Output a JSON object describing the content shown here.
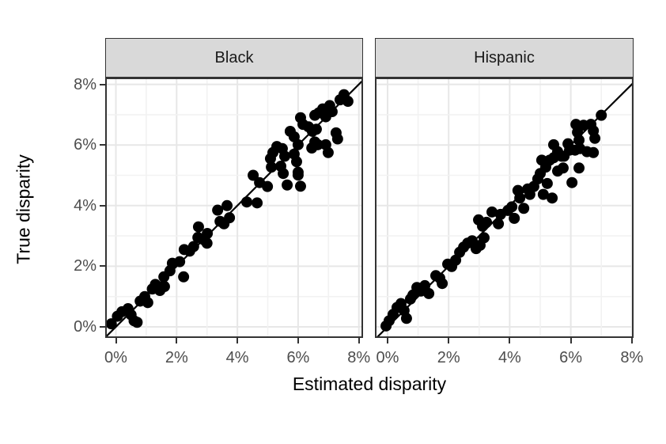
{
  "figure": {
    "x_axis_title": "Estimated disparity",
    "y_axis_title": "True disparity",
    "x_tick_labels": [
      "0%",
      "2%",
      "4%",
      "6%",
      "8%"
    ],
    "y_tick_labels": [
      "0%",
      "2%",
      "4%",
      "6%",
      "8%"
    ]
  },
  "colors": {
    "point": "#000000",
    "reference_line": "#000000",
    "strip_fill": "#d9d9d9",
    "panel_border": "#333333",
    "grid_major": "#e7e7e7",
    "grid_minor": "#f2f2f2",
    "tick_label": "#4d4d4d"
  },
  "chart_data": {
    "type": "scatter",
    "title": "",
    "xlabel": "Estimated disparity",
    "ylabel": "True disparity",
    "xlim": [
      -0.35,
      8.15
    ],
    "ylim": [
      -0.4,
      8.25
    ],
    "x_ticks_pct": [
      0,
      2,
      4,
      6,
      8
    ],
    "y_ticks_pct": [
      0,
      2,
      4,
      6,
      8
    ],
    "tick_format": "percent",
    "grid": "on",
    "reference_line": "y = x",
    "legend": "none",
    "facets": [
      {
        "label": "Black",
        "points": [
          [
            -0.15,
            0.1
          ],
          [
            0.05,
            0.35
          ],
          [
            0.2,
            0.5
          ],
          [
            0.4,
            0.6
          ],
          [
            0.5,
            0.4
          ],
          [
            0.6,
            0.2
          ],
          [
            0.7,
            0.15
          ],
          [
            0.8,
            0.85
          ],
          [
            0.95,
            1.0
          ],
          [
            1.05,
            0.8
          ],
          [
            1.2,
            1.25
          ],
          [
            1.3,
            1.4
          ],
          [
            1.45,
            1.2
          ],
          [
            1.58,
            1.65
          ],
          [
            1.6,
            1.33
          ],
          [
            1.78,
            1.85
          ],
          [
            1.86,
            2.1
          ],
          [
            2.1,
            2.15
          ],
          [
            2.23,
            1.65
          ],
          [
            2.25,
            2.55
          ],
          [
            2.43,
            2.5
          ],
          [
            2.56,
            2.65
          ],
          [
            2.7,
            2.95
          ],
          [
            2.9,
            2.87
          ],
          [
            3.01,
            3.08
          ],
          [
            2.72,
            3.3
          ],
          [
            3.0,
            2.76
          ],
          [
            3.35,
            3.85
          ],
          [
            3.43,
            3.48
          ],
          [
            3.56,
            3.4
          ],
          [
            3.66,
            4.0
          ],
          [
            3.74,
            3.6
          ],
          [
            4.31,
            4.12
          ],
          [
            4.52,
            5.0
          ],
          [
            4.65,
            4.09
          ],
          [
            4.73,
            4.76
          ],
          [
            4.99,
            4.63
          ],
          [
            5.09,
            5.55
          ],
          [
            5.17,
            5.75
          ],
          [
            5.3,
            5.95
          ],
          [
            5.43,
            5.3
          ],
          [
            5.56,
            5.63
          ],
          [
            5.64,
            4.68
          ],
          [
            5.87,
            5.7
          ],
          [
            6.0,
            5.1
          ],
          [
            6.08,
            4.64
          ],
          [
            5.12,
            5.27
          ],
          [
            5.48,
            5.88
          ],
          [
            5.95,
            5.45
          ],
          [
            5.74,
            6.45
          ],
          [
            5.87,
            6.27
          ],
          [
            6.0,
            6.01
          ],
          [
            6.08,
            6.9
          ],
          [
            6.16,
            6.68
          ],
          [
            6.34,
            6.6
          ],
          [
            6.47,
            6.45
          ],
          [
            6.55,
            6.98
          ],
          [
            6.68,
            7.06
          ],
          [
            6.81,
            7.19
          ],
          [
            6.91,
            6.93
          ],
          [
            7.04,
            7.3
          ],
          [
            7.12,
            7.1
          ],
          [
            7.25,
            6.4
          ],
          [
            7.3,
            6.2
          ],
          [
            7.38,
            7.49
          ],
          [
            7.51,
            7.66
          ],
          [
            7.64,
            7.44
          ],
          [
            6.99,
            5.75
          ],
          [
            6.91,
            6.01
          ],
          [
            6.65,
            6.01
          ],
          [
            6.55,
            6.1
          ],
          [
            6.45,
            5.9
          ],
          [
            6.6,
            6.52
          ],
          [
            6.0,
            5.01
          ],
          [
            5.51,
            5.06
          ]
        ]
      },
      {
        "label": "Hispanic",
        "points": [
          [
            -0.05,
            0.03
          ],
          [
            0.05,
            0.2
          ],
          [
            0.18,
            0.41
          ],
          [
            0.31,
            0.64
          ],
          [
            0.44,
            0.77
          ],
          [
            0.54,
            0.54
          ],
          [
            0.62,
            0.28
          ],
          [
            0.75,
            0.92
          ],
          [
            0.83,
            1.05
          ],
          [
            0.96,
            1.3
          ],
          [
            1.09,
            1.18
          ],
          [
            1.22,
            1.36
          ],
          [
            1.35,
            1.1
          ],
          [
            1.58,
            1.69
          ],
          [
            1.71,
            1.61
          ],
          [
            1.79,
            1.43
          ],
          [
            1.97,
            2.07
          ],
          [
            2.1,
            1.99
          ],
          [
            2.23,
            2.2
          ],
          [
            2.36,
            2.46
          ],
          [
            2.49,
            2.63
          ],
          [
            2.62,
            2.76
          ],
          [
            2.77,
            2.84
          ],
          [
            2.9,
            2.58
          ],
          [
            3.03,
            2.69
          ],
          [
            3.16,
            2.94
          ],
          [
            2.98,
            3.53
          ],
          [
            3.11,
            3.32
          ],
          [
            3.24,
            3.45
          ],
          [
            3.42,
            3.79
          ],
          [
            3.63,
            3.4
          ],
          [
            3.7,
            3.71
          ],
          [
            3.94,
            3.84
          ],
          [
            4.07,
            3.96
          ],
          [
            4.15,
            3.58
          ],
          [
            4.27,
            4.5
          ],
          [
            4.33,
            4.25
          ],
          [
            4.46,
            3.91
          ],
          [
            4.59,
            4.55
          ],
          [
            4.66,
            4.37
          ],
          [
            4.79,
            4.63
          ],
          [
            4.92,
            4.88
          ],
          [
            5.0,
            5.06
          ],
          [
            5.1,
            4.37
          ],
          [
            5.23,
            4.73
          ],
          [
            5.39,
            4.25
          ],
          [
            5.31,
            5.5
          ],
          [
            5.44,
            5.58
          ],
          [
            5.57,
            5.14
          ],
          [
            5.75,
            5.24
          ],
          [
            5.78,
            5.63
          ],
          [
            5.96,
            5.83
          ],
          [
            6.04,
            4.76
          ],
          [
            6.27,
            5.24
          ],
          [
            6.14,
            5.83
          ],
          [
            5.05,
            5.5
          ],
          [
            5.18,
            5.27
          ],
          [
            5.44,
            6.01
          ],
          [
            5.57,
            5.78
          ],
          [
            5.7,
            5.63
          ],
          [
            5.91,
            6.04
          ],
          [
            6.17,
            6.68
          ],
          [
            6.22,
            6.42
          ],
          [
            6.27,
            6.16
          ],
          [
            6.3,
            5.88
          ],
          [
            6.42,
            6.65
          ],
          [
            6.66,
            6.68
          ],
          [
            6.74,
            6.47
          ],
          [
            6.79,
            6.22
          ],
          [
            6.53,
            5.78
          ],
          [
            6.74,
            5.75
          ],
          [
            7.0,
            6.98
          ]
        ]
      }
    ]
  }
}
